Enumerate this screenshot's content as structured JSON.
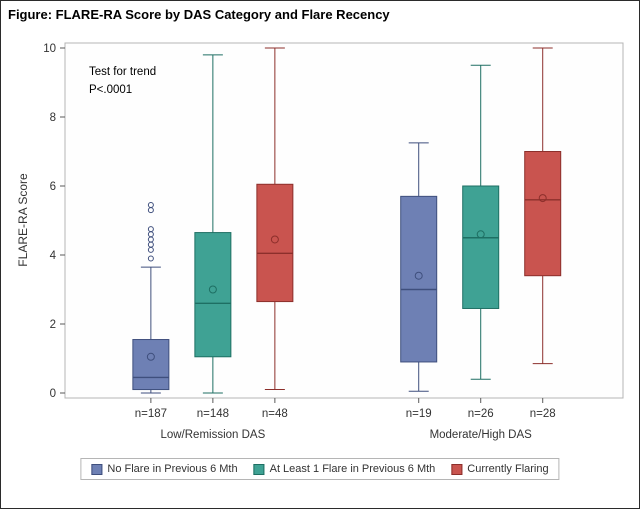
{
  "chart_data": {
    "type": "boxplot",
    "title": "Figure: FLARE-RA Score by DAS Category and Flare Recency",
    "ylabel": "FLARE-RA Score",
    "ylim": [
      0,
      10
    ],
    "yticks": [
      0,
      2,
      4,
      6,
      8,
      10
    ],
    "annotation": "Test for trend\nP<.0001",
    "grid": false,
    "legend_position": "bottom",
    "categories": [
      "Low/Remission DAS",
      "Moderate/High DAS"
    ],
    "series": [
      {
        "name": "No Flare in Previous 6 Mth",
        "fill": "#6e80b4",
        "stroke": "#3f4f7d"
      },
      {
        "name": "At Least 1 Flare in Previous 6 Mth",
        "fill": "#3fa294",
        "stroke": "#1e6f63"
      },
      {
        "name": "Currently Flaring",
        "fill": "#c9544f",
        "stroke": "#8c2f2b"
      }
    ],
    "boxes": [
      {
        "category_index": 0,
        "series": 0,
        "n_label": "n=187",
        "whisker_low": 0,
        "q1": 0.1,
        "median": 0.45,
        "q3": 1.55,
        "whisker_high": 3.65,
        "mean": 1.05,
        "outliers": [
          3.9,
          4.15,
          4.3,
          4.45,
          4.6,
          4.75,
          5.3,
          5.45
        ]
      },
      {
        "category_index": 0,
        "series": 1,
        "n_label": "n=148",
        "whisker_low": 0,
        "q1": 1.05,
        "median": 2.6,
        "q3": 4.65,
        "whisker_high": 9.8,
        "mean": 3.0,
        "outliers": []
      },
      {
        "category_index": 0,
        "series": 2,
        "n_label": "n=48",
        "whisker_low": 0.1,
        "q1": 2.65,
        "median": 4.05,
        "q3": 6.05,
        "whisker_high": 10,
        "mean": 4.45,
        "outliers": []
      },
      {
        "category_index": 1,
        "series": 0,
        "n_label": "n=19",
        "whisker_low": 0.05,
        "q1": 0.9,
        "median": 3.0,
        "q3": 5.7,
        "whisker_high": 7.25,
        "mean": 3.4,
        "outliers": []
      },
      {
        "category_index": 1,
        "series": 1,
        "n_label": "n=26",
        "whisker_low": 0.4,
        "q1": 2.45,
        "median": 4.5,
        "q3": 6.0,
        "whisker_high": 9.5,
        "mean": 4.6,
        "outliers": []
      },
      {
        "category_index": 1,
        "series": 2,
        "n_label": "n=28",
        "whisker_low": 0.85,
        "q1": 3.4,
        "median": 5.6,
        "q3": 7.0,
        "whisker_high": 10,
        "mean": 5.65,
        "outliers": []
      }
    ]
  }
}
